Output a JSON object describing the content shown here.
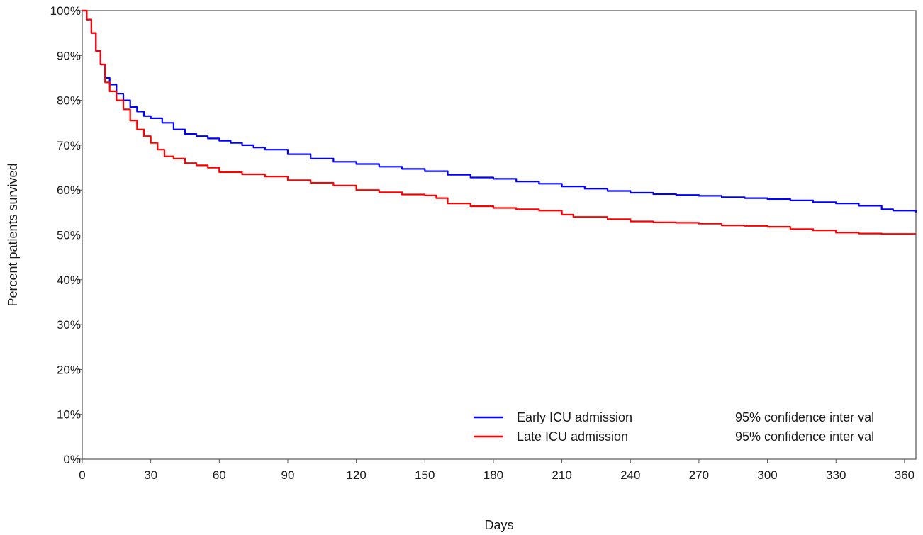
{
  "chart_data": {
    "type": "line",
    "title": "",
    "xlabel": "Days",
    "ylabel": "Percent patients survived",
    "xlim": [
      0,
      365
    ],
    "ylim": [
      0,
      100
    ],
    "x_ticks": [
      0,
      30,
      60,
      90,
      120,
      150,
      180,
      210,
      240,
      270,
      300,
      330,
      360
    ],
    "x_tick_labels": [
      "0",
      "30",
      "60",
      "90",
      "120",
      "150",
      "180",
      "210",
      "240",
      "270",
      "300",
      "330",
      "360"
    ],
    "y_ticks": [
      0,
      10,
      20,
      30,
      40,
      50,
      60,
      70,
      80,
      90,
      100
    ],
    "y_tick_labels": [
      "0%",
      "10%",
      "20%",
      "30%",
      "40%",
      "50%",
      "60%",
      "70%",
      "80%",
      "90%",
      "100%"
    ],
    "grid": false,
    "legend_position": "bottom-right",
    "series": [
      {
        "name": "Early ICU admission",
        "ci_label": "95% confidence inter val",
        "color": "#0000ff",
        "x": [
          0,
          2,
          4,
          6,
          8,
          10,
          12,
          15,
          18,
          21,
          24,
          27,
          30,
          35,
          40,
          45,
          50,
          55,
          60,
          65,
          70,
          75,
          80,
          90,
          100,
          110,
          120,
          130,
          140,
          150,
          160,
          170,
          180,
          190,
          200,
          210,
          220,
          230,
          240,
          250,
          260,
          270,
          280,
          290,
          300,
          310,
          320,
          330,
          340,
          350,
          355,
          360,
          365
        ],
        "y": [
          100,
          98,
          95,
          91,
          88,
          85,
          83.5,
          81.5,
          80,
          78.5,
          77.5,
          76.5,
          76,
          75,
          73.5,
          72.5,
          72,
          71.5,
          71,
          70.5,
          70,
          69.5,
          69,
          68,
          67,
          66.3,
          65.8,
          65.2,
          64.7,
          64.2,
          63.4,
          62.8,
          62.5,
          61.9,
          61.4,
          60.8,
          60.3,
          59.8,
          59.4,
          59.1,
          58.9,
          58.7,
          58.4,
          58.2,
          58,
          57.7,
          57.3,
          57,
          56.5,
          55.7,
          55.4,
          55.4,
          55
        ]
      },
      {
        "name": "Late ICU admission",
        "ci_label": "95% confidence inter val",
        "color": "#ff0000",
        "x": [
          0,
          2,
          4,
          6,
          8,
          10,
          12,
          15,
          18,
          21,
          24,
          27,
          30,
          33,
          36,
          40,
          45,
          50,
          55,
          60,
          70,
          80,
          90,
          100,
          110,
          120,
          130,
          140,
          150,
          155,
          160,
          170,
          180,
          190,
          200,
          210,
          215,
          230,
          240,
          250,
          260,
          270,
          280,
          290,
          300,
          310,
          320,
          330,
          340,
          350,
          360,
          365
        ],
        "y": [
          100,
          98,
          95,
          91,
          88,
          84,
          82,
          80,
          78,
          75.5,
          73.5,
          72,
          70.5,
          69,
          67.5,
          67,
          66,
          65.5,
          65,
          64,
          63.5,
          63,
          62.2,
          61.6,
          61,
          60,
          59.5,
          59,
          58.8,
          58.2,
          57,
          56.4,
          56,
          55.7,
          55.4,
          54.5,
          54,
          53.5,
          53,
          52.8,
          52.7,
          52.5,
          52.1,
          52,
          51.8,
          51.3,
          51,
          50.5,
          50.3,
          50.2,
          50.2,
          50.2
        ]
      }
    ]
  }
}
